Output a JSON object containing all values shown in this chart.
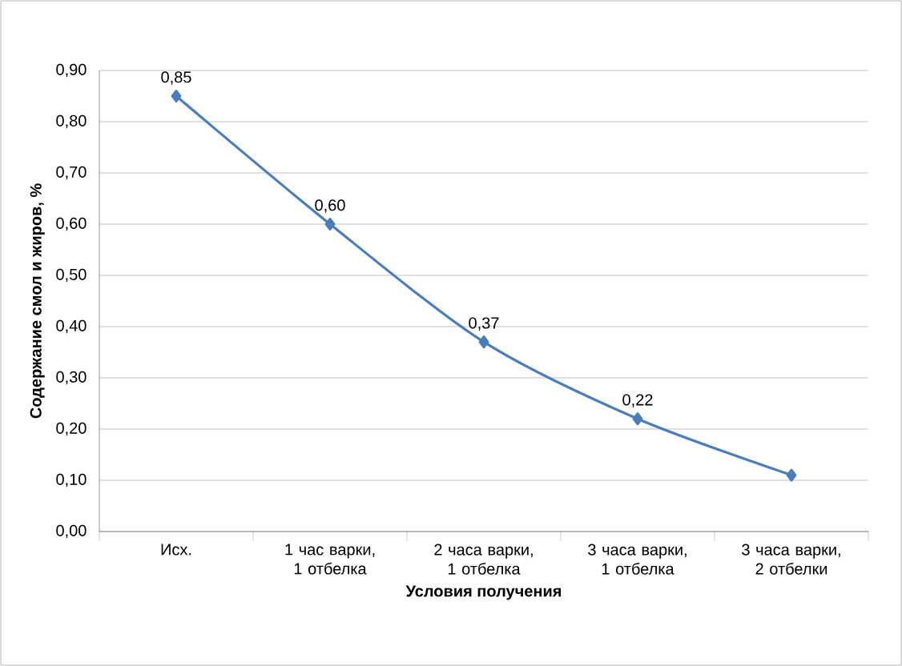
{
  "chart_data": {
    "type": "line",
    "xlabel": "Условия получения",
    "ylabel": "Содержание смол и жиров, %",
    "categories": [
      "Исх.",
      "1 час варки, 1 отбелка",
      "2 часа варки, 1 отбелка",
      "3 часа варки, 1 отбелка",
      "3 часа варки, 2 отбелки"
    ],
    "series": [
      {
        "color": "#4a7ebb",
        "values": [
          0.85,
          0.6,
          0.37,
          0.22,
          0.11
        ],
        "value_labels": [
          "0,85",
          "0,60",
          "0,37",
          "0,22",
          null
        ]
      }
    ],
    "ylim": [
      0,
      0.9
    ],
    "yticks": [
      {
        "value": 0,
        "label": "0,00"
      },
      {
        "value": 0.1,
        "label": "0,10"
      },
      {
        "value": 0.2,
        "label": "0,20"
      },
      {
        "value": 0.3,
        "label": "0,30"
      },
      {
        "value": 0.4,
        "label": "0,40"
      },
      {
        "value": 0.5,
        "label": "0,50"
      },
      {
        "value": 0.6,
        "label": "0,60"
      },
      {
        "value": 0.7,
        "label": "0,70"
      },
      {
        "value": 0.8,
        "label": "0,80"
      },
      {
        "value": 0.9,
        "label": "0,90"
      }
    ],
    "grid": "y",
    "marker": "diamond",
    "line_style": "solid"
  }
}
